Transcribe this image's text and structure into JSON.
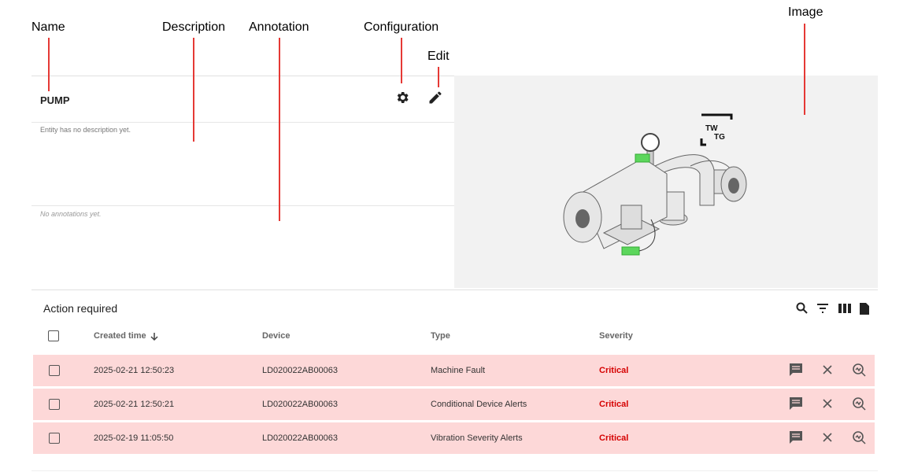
{
  "callouts": {
    "name": "Name",
    "description": "Description",
    "annotation": "Annotation",
    "configuration": "Configuration",
    "edit": "Edit",
    "image": "Image"
  },
  "entity": {
    "name": "PUMP",
    "description": "Entity has no description yet.",
    "annotations": "No annotations yet.",
    "logo": [
      "TW",
      "TG"
    ]
  },
  "alarms": {
    "title": "Action required",
    "columns": [
      "Created time",
      "Device",
      "Type",
      "Severity"
    ],
    "rows": [
      [
        "2025-02-21 12:50:23",
        "LD020022AB00063",
        "Machine Fault",
        "Critical"
      ],
      [
        "2025-02-21 12:50:21",
        "LD020022AB00063",
        "Conditional Device Alerts",
        "Critical"
      ],
      [
        "2025-02-19 11:05:50",
        "LD020022AB00063",
        "Vibration Severity Alerts",
        "Critical"
      ]
    ]
  }
}
